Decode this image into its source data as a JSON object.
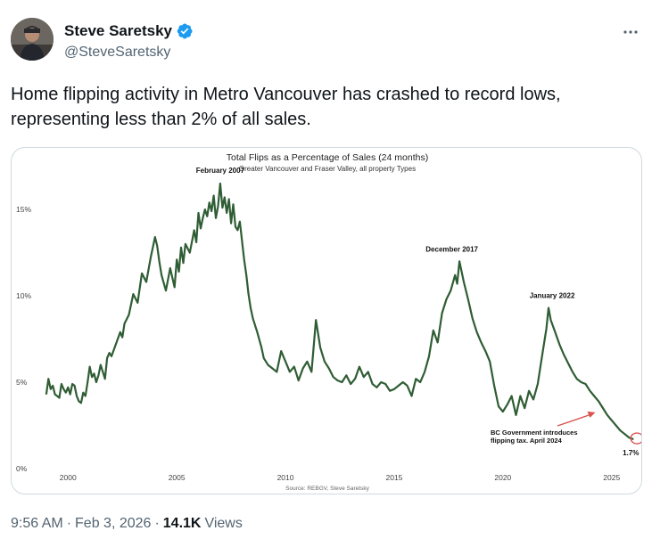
{
  "post": {
    "author": {
      "display_name": "Steve Saretsky",
      "handle": "@SteveSaretsky",
      "verified": true,
      "verified_color": "#1d9bf0"
    },
    "more_icon": "more-horizontal-icon",
    "text": "Home flipping activity in Metro Vancouver has crashed to record lows, representing less than 2% of all sales.",
    "time": "9:56 AM",
    "separator": "·",
    "date": "Feb 3, 2026",
    "views_count": "14.1K",
    "views_label": "Views"
  },
  "chart_data": {
    "type": "line",
    "title": "Total Flips as a Percentage of Sales (24 months)",
    "subtitle": "Greater Vancouver and Fraser Valley, all property Types",
    "source": "Source: REBGV, Steve Saretsky",
    "line_color": "#2f5d34",
    "annotation_color": "#d9534f",
    "xlim": [
      1998.8,
      2026.2
    ],
    "ylim": [
      0,
      16.5
    ],
    "x_ticks": [
      {
        "value": 2000,
        "label": "2000"
      },
      {
        "value": 2005,
        "label": "2005"
      },
      {
        "value": 2010,
        "label": "2010"
      },
      {
        "value": 2015,
        "label": "2015"
      },
      {
        "value": 2020,
        "label": "2020"
      },
      {
        "value": 2025,
        "label": "2025"
      }
    ],
    "y_ticks": [
      {
        "value": 0,
        "label": "0%"
      },
      {
        "value": 5,
        "label": "5%"
      },
      {
        "value": 10,
        "label": "10%"
      },
      {
        "value": 15,
        "label": "15%"
      }
    ],
    "series": [
      {
        "name": "",
        "x": [
          1999.0,
          1999.1,
          1999.2,
          1999.3,
          1999.4,
          1999.5,
          1999.6,
          1999.7,
          1999.8,
          1999.9,
          2000.0,
          2000.1,
          2000.2,
          2000.3,
          2000.4,
          2000.5,
          2000.6,
          2000.7,
          2000.8,
          2000.9,
          2001.0,
          2001.1,
          2001.2,
          2001.3,
          2001.4,
          2001.5,
          2001.6,
          2001.7,
          2001.8,
          2001.9,
          2002.0,
          2002.2,
          2002.4,
          2002.5,
          2002.6,
          2002.8,
          2003.0,
          2003.2,
          2003.4,
          2003.6,
          2003.8,
          2004.0,
          2004.1,
          2004.2,
          2004.3,
          2004.5,
          2004.7,
          2004.9,
          2005.0,
          2005.1,
          2005.2,
          2005.3,
          2005.4,
          2005.6,
          2005.8,
          2005.9,
          2006.0,
          2006.1,
          2006.2,
          2006.3,
          2006.4,
          2006.5,
          2006.6,
          2006.7,
          2006.8,
          2006.9,
          2007.0,
          2007.1,
          2007.2,
          2007.3,
          2007.4,
          2007.5,
          2007.6,
          2007.7,
          2007.8,
          2007.9,
          2008.0,
          2008.1,
          2008.2,
          2008.3,
          2008.4,
          2008.5,
          2008.7,
          2008.9,
          2009.0,
          2009.2,
          2009.4,
          2009.6,
          2009.8,
          2010.0,
          2010.2,
          2010.4,
          2010.6,
          2010.8,
          2011.0,
          2011.2,
          2011.4,
          2011.6,
          2011.8,
          2012.0,
          2012.2,
          2012.4,
          2012.6,
          2012.8,
          2013.0,
          2013.2,
          2013.4,
          2013.6,
          2013.8,
          2014.0,
          2014.2,
          2014.4,
          2014.6,
          2014.8,
          2015.0,
          2015.2,
          2015.4,
          2015.6,
          2015.8,
          2016.0,
          2016.2,
          2016.4,
          2016.6,
          2016.8,
          2017.0,
          2017.2,
          2017.4,
          2017.6,
          2017.8,
          2017.9,
          2018.0,
          2018.2,
          2018.4,
          2018.6,
          2018.8,
          2019.0,
          2019.2,
          2019.4,
          2019.6,
          2019.8,
          2020.0,
          2020.2,
          2020.4,
          2020.6,
          2020.8,
          2021.0,
          2021.2,
          2021.4,
          2021.6,
          2021.8,
          2022.0,
          2022.1,
          2022.2,
          2022.4,
          2022.6,
          2022.8,
          2023.0,
          2023.2,
          2023.4,
          2023.6,
          2023.8,
          2024.0,
          2024.2,
          2024.4,
          2024.6,
          2024.8,
          2025.0,
          2025.2,
          2025.4,
          2025.6,
          2025.8,
          2026.0
        ],
        "y": [
          4.3,
          5.2,
          4.6,
          4.8,
          4.3,
          4.2,
          4.1,
          4.9,
          4.6,
          4.4,
          4.7,
          4.3,
          4.9,
          4.8,
          4.2,
          3.9,
          3.8,
          4.4,
          4.2,
          5.0,
          5.9,
          5.3,
          5.5,
          5.0,
          5.4,
          6.0,
          5.6,
          5.2,
          6.4,
          6.7,
          6.5,
          7.2,
          7.9,
          7.6,
          8.4,
          8.9,
          10.1,
          9.6,
          11.3,
          10.8,
          12.2,
          13.4,
          12.9,
          12.0,
          11.2,
          10.3,
          11.6,
          10.5,
          12.1,
          11.4,
          12.8,
          11.9,
          13.0,
          12.5,
          13.8,
          13.1,
          14.8,
          13.9,
          14.5,
          15.0,
          14.6,
          15.4,
          14.9,
          15.8,
          14.5,
          15.2,
          16.5,
          15.1,
          15.7,
          14.8,
          15.6,
          14.2,
          15.3,
          14.0,
          13.8,
          14.3,
          13.2,
          12.1,
          11.2,
          10.1,
          9.3,
          8.7,
          7.9,
          7.0,
          6.4,
          6.0,
          5.8,
          5.6,
          6.8,
          6.2,
          5.6,
          5.9,
          5.1,
          5.8,
          6.2,
          5.6,
          8.6,
          7.0,
          6.2,
          5.8,
          5.3,
          5.1,
          5.0,
          5.4,
          4.9,
          5.2,
          5.9,
          5.3,
          5.6,
          4.9,
          4.7,
          5.0,
          4.9,
          4.5,
          4.6,
          4.8,
          5.0,
          4.8,
          4.2,
          5.2,
          5.0,
          5.6,
          6.5,
          8.0,
          7.3,
          9.0,
          9.8,
          10.3,
          11.2,
          10.7,
          12.0,
          10.8,
          9.8,
          8.7,
          7.9,
          7.3,
          6.8,
          6.2,
          4.8,
          3.6,
          3.3,
          3.7,
          4.2,
          3.1,
          4.2,
          3.5,
          4.5,
          4.0,
          4.9,
          6.5,
          8.1,
          9.3,
          8.6,
          7.9,
          7.2,
          6.6,
          6.1,
          5.6,
          5.2,
          5.0,
          4.9,
          4.5,
          4.2,
          3.9,
          3.5,
          3.1,
          2.8,
          2.5,
          2.2,
          2.0,
          1.8,
          1.7
        ]
      }
    ],
    "annotations": [
      {
        "x": 2007.0,
        "y": 16.5,
        "text": "February 2007"
      },
      {
        "x": 2017.9,
        "y": 12.0,
        "text": "December 2017"
      },
      {
        "x": 2022.1,
        "y": 9.3,
        "text": "January 2022"
      },
      {
        "text_lines": [
          "BC Government introduces",
          "flipping tax. April 2024"
        ],
        "target_x": 2024.25,
        "target_y": 3.1
      },
      {
        "x": 2026.0,
        "y": 1.7,
        "text": "1.7%"
      }
    ]
  }
}
